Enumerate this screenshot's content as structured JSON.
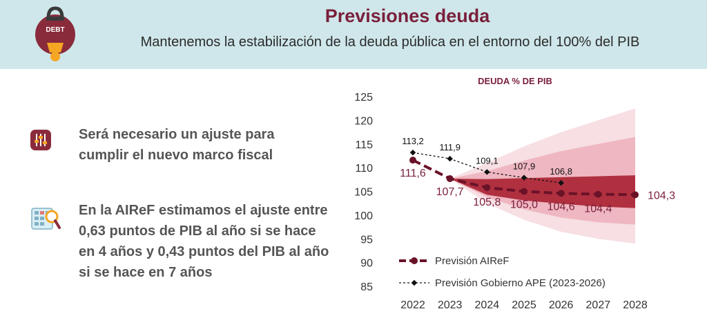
{
  "header": {
    "title": "Previsiones deuda",
    "subtitle": "Mantenemos la estabilización de la deuda pública en el entorno del 100% del PIB",
    "logo_text": "DEBT"
  },
  "points": [
    {
      "text": "Será necesario un ajuste para cumplir el nuevo marco fiscal",
      "icon": "sliders-icon"
    },
    {
      "text": "En la AIReF estimamos el ajuste entre 0,63 puntos de PIB al año si se hace en 4 años y 0,43 puntos del PIB al año si se hace en 7 años",
      "icon": "calculator-magnifier-icon"
    }
  ],
  "colors": {
    "header_bg": "#cfe7ea",
    "accent": "#7a1f3a",
    "band_outer": "#f7dfe3",
    "band_mid": "#efb7c1",
    "band_inner": "#b0303f",
    "airef_line": "#6a1228"
  },
  "chart_data": {
    "type": "line",
    "title": "DEUDA % DE PIB",
    "x": [
      2022,
      2023,
      2024,
      2025,
      2026,
      2027,
      2028
    ],
    "ylim": [
      85,
      125
    ],
    "yticks": [
      85,
      90,
      95,
      100,
      105,
      110,
      115,
      120,
      125
    ],
    "series": [
      {
        "name": "Previsión AIReF",
        "style": "dashed-thick-markers",
        "values": [
          111.6,
          107.7,
          105.8,
          105.0,
          104.6,
          104.4,
          104.3
        ],
        "labels": [
          "111,6",
          "107,7",
          "105,8",
          "105,0",
          "104,6",
          "104,4",
          "104,3"
        ]
      },
      {
        "name": "Previsión Gobierno APE (2023-2026)",
        "style": "dashed-thin-diamonds",
        "x": [
          2022,
          2023,
          2024,
          2025,
          2026
        ],
        "values": [
          113.2,
          111.9,
          109.1,
          107.9,
          106.8
        ],
        "labels": [
          "113,2",
          "111,9",
          "109,1",
          "107,9",
          "106,8"
        ]
      }
    ],
    "fan_bands": {
      "x": [
        2023,
        2024,
        2025,
        2026,
        2027,
        2028
      ],
      "outer": {
        "upper": [
          107.7,
          111.0,
          114.5,
          117.5,
          120.0,
          122.5
        ],
        "lower": [
          107.7,
          102.5,
          99.0,
          96.5,
          95.0,
          94.0
        ]
      },
      "middle": {
        "upper": [
          107.7,
          109.3,
          111.5,
          113.5,
          115.0,
          116.5
        ],
        "lower": [
          107.7,
          103.8,
          101.2,
          99.5,
          98.5,
          98.0
        ]
      },
      "inner": {
        "upper": [
          107.7,
          107.6,
          107.8,
          108.0,
          108.2,
          108.4
        ],
        "lower": [
          107.7,
          104.3,
          103.1,
          102.4,
          101.8,
          101.5
        ]
      }
    },
    "legend_placement": "bottom-left",
    "grid": false
  }
}
